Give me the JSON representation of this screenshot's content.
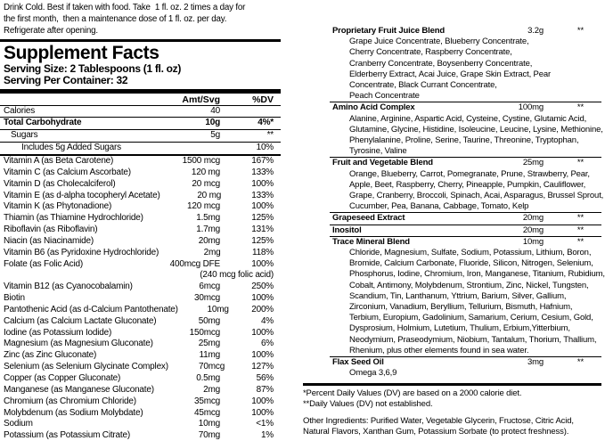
{
  "colors": {
    "ink": "#000000",
    "paper": "#ffffff"
  },
  "label": {
    "intro_lines": [
      "Drink Cold. Best if taken with food. Take  1 fl. oz. 2 times a day for",
      "the first month,  then a maintenance dose of 1 fl. oz. per day.",
      "Refrigerate after opening."
    ]
  },
  "supplement_facts": {
    "title": "Supplement Facts",
    "serving_size": "Serving Size: 2 Tablespoons (1 fl. oz)",
    "servings_per_container": "Serving Per Container: 32",
    "columns": {
      "amount": "Amt/Svg",
      "dv": "%DV"
    },
    "rows": [
      {
        "name": "Calories",
        "amount": "40",
        "dv": "",
        "sep": "thin"
      },
      {
        "name": "Total Carbohydrate",
        "amount": "10g",
        "dv": "4%*",
        "bold": true,
        "sep": "thin"
      },
      {
        "name": "Sugars",
        "amount": "5g",
        "dv": "**",
        "indent": 1,
        "sep": "thin"
      },
      {
        "name": "Includes 5g Added Sugars",
        "amount": "",
        "dv": "10%",
        "indent": 2,
        "sep": "medium"
      },
      {
        "name": "Vitamin A (as Beta Carotene)",
        "amount": "1500 mcg",
        "dv": "167%"
      },
      {
        "name": "Vitamin C (as Calcium Ascorbate)",
        "amount": "120 mg",
        "dv": "133%"
      },
      {
        "name": "Vitamin D (as Cholecalciferol)",
        "amount": "20 mcg",
        "dv": "100%"
      },
      {
        "name": "Vitamin E (as d-alpha tocopheryl Acetate)",
        "amount": "20 mg",
        "dv": "133%"
      },
      {
        "name": "Vitamin K (as Phytonadione)",
        "amount": "120 mcg",
        "dv": "100%"
      },
      {
        "name": "Thiamin (as Thiamine Hydrochloride)",
        "amount": "1.5mg",
        "dv": "125%"
      },
      {
        "name": "Riboflavin (as Riboflavin)",
        "amount": "1.7mg",
        "dv": "131%"
      },
      {
        "name": "Niacin (as Niacinamide)",
        "amount": "20mg",
        "dv": "125%"
      },
      {
        "name": "Vitamin B6 (as Pyridoxine Hydrochloride)",
        "amount": "2mg",
        "dv": "118%"
      },
      {
        "name": "Folate (as Folic Acid)",
        "amount": "400mcg DFE",
        "dv": "100%",
        "sub_amount": "(240 mcg folic acid)"
      },
      {
        "name": "Vitamin B12 (as Cyanocobalamin)",
        "amount": "6mcg",
        "dv": "250%"
      },
      {
        "name": "Biotin",
        "amount": "30mcg",
        "dv": "100%"
      },
      {
        "name": "Pantothenic Acid (as d-Calcium Pantothenate)",
        "amount": "10mg",
        "dv": "200%"
      },
      {
        "name": "Calcium (as Calcium Lactate Gluconate)",
        "amount": "50mg",
        "dv": "4%"
      },
      {
        "name": "Iodine (as Potassium Iodide)",
        "amount": "150mcg",
        "dv": "100%"
      },
      {
        "name": "Magnesium (as Magnesium Gluconate)",
        "amount": "25mg",
        "dv": "6%"
      },
      {
        "name": "Zinc (as Zinc Gluconate)",
        "amount": "11mg",
        "dv": "100%"
      },
      {
        "name": "Selenium (as Selenium Glycinate Complex)",
        "amount": "70mcg",
        "dv": "127%"
      },
      {
        "name": "Copper (as Copper Gluconate)",
        "amount": "0.5mg",
        "dv": "56%"
      },
      {
        "name": "Manganese (as Manganese Gluconate)",
        "amount": "2mg",
        "dv": "87%"
      },
      {
        "name": "Chromium (as Chromium Chloride)",
        "amount": "35mcg",
        "dv": "100%"
      },
      {
        "name": "Molybdenum (as Sodium Molybdate)",
        "amount": "45mcg",
        "dv": "100%"
      },
      {
        "name": "Sodium",
        "amount": "10mg",
        "dv": "<1%"
      },
      {
        "name": "Potassium (as Potassium Citrate)",
        "amount": "70mg",
        "dv": "1%"
      }
    ]
  },
  "blends": [
    {
      "name": "Proprietary Fruit Juice Blend",
      "amount": "3.2g",
      "dv": "**",
      "lines": [
        "Grape Juice Concentrate, Blueberry Concentrate,",
        "Cherry Concentrate, Raspberry Concentrate,",
        "Cranberry Concentrate, Boysenberry Concentrate,",
        "Elderberry Extract, Acai Juice, Grape Skin Extract, Pear",
        "Concentrate, Black Currant Concentrate,",
        "Peach Concentrate"
      ]
    },
    {
      "name": "Amino Acid Complex",
      "amount": "100mg",
      "dv": "**",
      "lines": [
        "Alanine, Arginine, Aspartic Acid, Cysteine, Cystine, Glutamic Acid,",
        "Glutamine, Glycine, Histidine, Isoleucine, Leucine, Lysine, Methionine,",
        "Phenylalanine, Proline, Serine, Taurine, Threonine, Tryptophan,",
        "Tyrosine, Valine"
      ]
    },
    {
      "name": "Fruit and Vegetable Blend",
      "amount": "25mg",
      "dv": "**",
      "lines": [
        "Orange, Blueberry, Carrot, Pomegranate, Prune, Strawberry, Pear,",
        "Apple, Beet, Raspberry, Cherry, Pineapple, Pumpkin, Cauliflower,",
        "Grape, Cranberry, Broccoli, Spinach, Acai, Asparagus, Brussel Sprout,",
        "Cucumber, Pea, Banana, Cabbage, Tomato, Kelp"
      ]
    },
    {
      "name": "Grapeseed Extract",
      "amount": "20mg",
      "dv": "**",
      "lines": []
    },
    {
      "name": "Inositol",
      "amount": "20mg",
      "dv": "**",
      "lines": []
    },
    {
      "name": "Trace Mineral Blend",
      "amount": "10mg",
      "dv": "**",
      "lines": [
        "Chloride, Magnesium, Sulfate, Sodium, Potassium, Lithium, Boron,",
        "Bromide, Calcium Carbonate, Fluoride, Silicon, Nitrogen, Selenium,",
        "Phosphorus, Iodine, Chromium, Iron, Manganese, Titanium, Rubidium,",
        "Cobalt, Antimony, Molybdenum, Strontium, Zinc, Nickel, Tungsten,",
        "Scandium, Tin, Lanthanum, Yttrium, Barium, Silver, Gallium,",
        "Zirconium, Vanadium, Beryllium, Tellurium, Bismuth, Hafnium,",
        "Terbium, Europium, Gadolinium, Samarium, Cerium, Cesium, Gold,",
        "Dysprosium, Holmium, Lutetium, Thulium, Erbium,Yitterbium,",
        "Neodymium, Praseodymium, Niobium, Tantalum, Thorium, Thallium,",
        "Rhenium, plus other elements found in sea water."
      ]
    },
    {
      "name": "Flax Seed Oil",
      "amount": "3mg",
      "dv": "**",
      "lines": [
        "Omega 3,6,9"
      ]
    }
  ],
  "footnotes": [
    "*Percent Daily Values (DV) are based on a 2000 calorie diet.",
    "**Daily Values (DV) not established."
  ],
  "other_ingredients_lines": [
    "Other Ingredients: Purified Water, Vegetable Glycerin, Fructose, Citric Acid,",
    "Natural Flavors, Xanthan Gum, Potassium Sorbate (to protect freshness)."
  ]
}
